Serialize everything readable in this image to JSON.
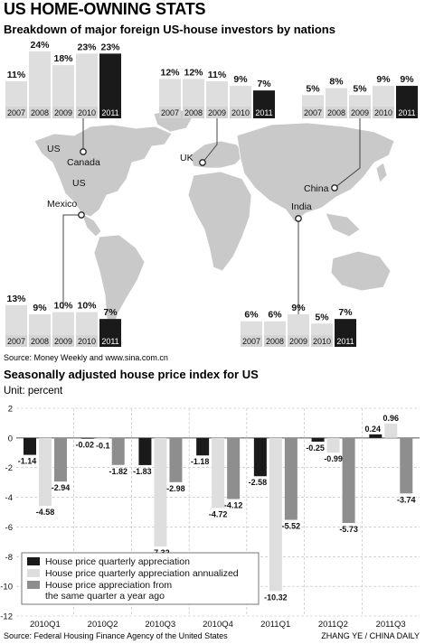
{
  "title": "US HOME-OWNING STATS",
  "subtitle1": "Breakdown of major foreign US-house investors by nations",
  "source1": "Source: Money Weekly and www.sina.com.cn",
  "subtitle2": "Seasonally adjusted house price index for US",
  "unit": "Unit: percent",
  "source2": "Source: Federal Housing Finance Agency of the United States",
  "credit": "ZHANG YE / CHINA DAILY",
  "colors": {
    "dark": "#1a1a1a",
    "light": "#dedede",
    "mid": "#8e8e8e",
    "map_land": "#c9c9c9",
    "year_box": "#d4d4d4"
  },
  "map_labels": [
    {
      "id": "us-top",
      "text": "US"
    },
    {
      "id": "canada",
      "text": "Canada"
    },
    {
      "id": "us-mid",
      "text": "US"
    },
    {
      "id": "mexico",
      "text": "Mexico"
    },
    {
      "id": "uk",
      "text": "UK"
    },
    {
      "id": "china",
      "text": "China"
    },
    {
      "id": "india",
      "text": "India"
    }
  ],
  "chart_data": [
    {
      "type": "bar",
      "country": "Canada",
      "categories": [
        "2007",
        "2008",
        "2009",
        "2010",
        "2011"
      ],
      "values": [
        11,
        24,
        18,
        23,
        23
      ],
      "labels": [
        "11%",
        "24%",
        "18%",
        "23%",
        "23%"
      ]
    },
    {
      "type": "bar",
      "country": "UK",
      "categories": [
        "2007",
        "2008",
        "2009",
        "2010",
        "2011"
      ],
      "values": [
        12,
        12,
        11,
        9,
        7
      ],
      "labels": [
        "12%",
        "12%",
        "11%",
        "9%",
        "7%"
      ]
    },
    {
      "type": "bar",
      "country": "China",
      "categories": [
        "2007",
        "2008",
        "2009",
        "2010",
        "2011"
      ],
      "values": [
        5,
        8,
        5,
        9,
        9
      ],
      "labels": [
        "5%",
        "8%",
        "5%",
        "9%",
        "9%"
      ]
    },
    {
      "type": "bar",
      "country": "Mexico",
      "categories": [
        "2007",
        "2008",
        "2009",
        "2010",
        "2011"
      ],
      "values": [
        13,
        9,
        10,
        10,
        7
      ],
      "labels": [
        "13%",
        "9%",
        "10%",
        "10%",
        "7%"
      ]
    },
    {
      "type": "bar",
      "country": "India",
      "categories": [
        "2007",
        "2008",
        "2009",
        "2010",
        "2011"
      ],
      "values": [
        6,
        6,
        9,
        5,
        7
      ],
      "labels": [
        "6%",
        "6%",
        "9%",
        "5%",
        "7%"
      ]
    },
    {
      "type": "bar",
      "title": "Seasonally adjusted house price index for US",
      "categories": [
        "2010Q1",
        "2010Q2",
        "2010Q3",
        "2010Q4",
        "2011Q1",
        "2011Q2",
        "2011Q3"
      ],
      "ylim": [
        -12,
        2
      ],
      "yticks": [
        2,
        0,
        -2,
        -4,
        -6,
        -8,
        -10,
        -12
      ],
      "series": [
        {
          "name": "House price quarterly appreciation",
          "values": [
            -1.14,
            -0.02,
            -1.83,
            -1.18,
            -2.58,
            -0.25,
            0.24
          ],
          "labels": [
            "-1.14",
            "-0.02",
            "-1.83",
            "-1.18",
            "-2.58",
            "-0.25",
            "0.24"
          ]
        },
        {
          "name": "House price quarterly appreciation annualized",
          "values": [
            -4.58,
            -0.1,
            -7.32,
            -4.72,
            -10.32,
            -0.99,
            0.96
          ],
          "labels": [
            "-4.58",
            "-0.1",
            "-7.32",
            "-4.72",
            "-10.32",
            "-0.99",
            "0.96"
          ]
        },
        {
          "name": "House price appreciation from the same quarter a year ago",
          "values": [
            -2.94,
            -1.82,
            -2.98,
            -4.12,
            -5.52,
            -5.73,
            -3.74
          ],
          "labels": [
            "-2.94",
            "-1.82",
            "-2.98",
            "-4.12",
            "-5.52",
            "-5.73",
            "-3.74"
          ]
        }
      ],
      "legend": [
        {
          "lines": [
            "House price quarterly appreciation"
          ]
        },
        {
          "lines": [
            "House price quarterly appreciation annualized"
          ]
        },
        {
          "lines": [
            "House price appreciation from",
            "the same quarter a year ago"
          ]
        }
      ],
      "legend_position": "bottom-left"
    }
  ]
}
